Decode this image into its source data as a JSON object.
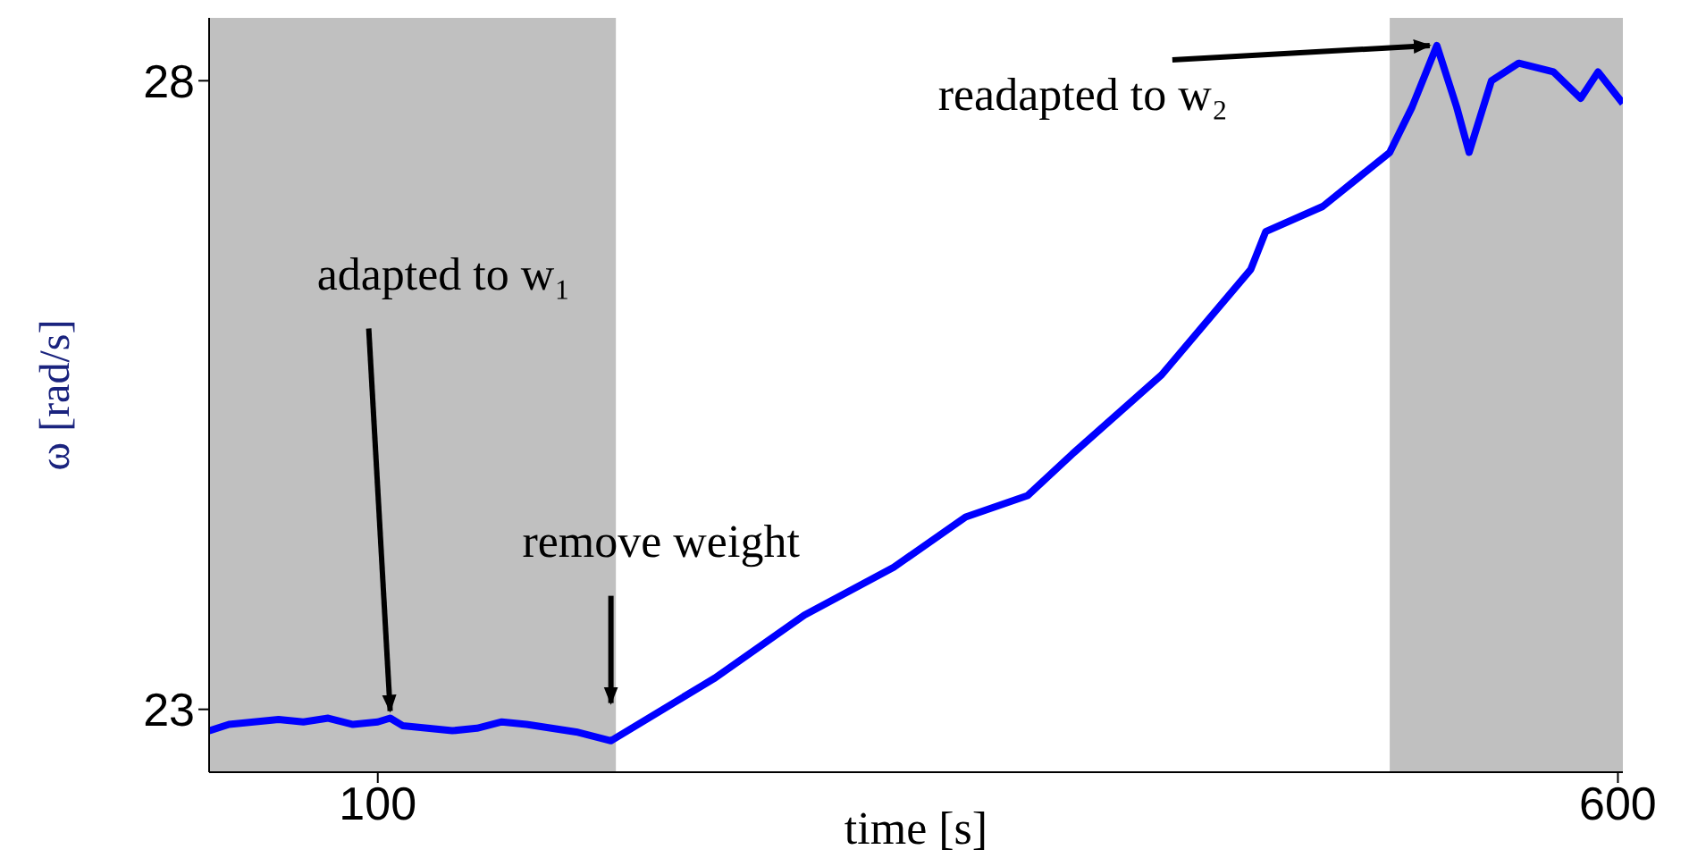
{
  "chart_data": {
    "type": "line",
    "xlabel": "time [s]",
    "ylabel": "ω [rad/s]",
    "xlim": [
      32,
      602
    ],
    "ylim": [
      22.5,
      28.5
    ],
    "xticks": [
      100,
      600
    ],
    "yticks": [
      23,
      28
    ],
    "series": [
      {
        "color": "#0000ff",
        "x": [
          32,
          40,
          50,
          60,
          70,
          80,
          90,
          100,
          105,
          110,
          120,
          130,
          140,
          150,
          160,
          170,
          180,
          194,
          236,
          272,
          308,
          337,
          362,
          380,
          416,
          452,
          458,
          481,
          508,
          517,
          527,
          535,
          540,
          549,
          560,
          574,
          585,
          592,
          602
        ],
        "values": [
          22.83,
          22.88,
          22.9,
          22.92,
          22.9,
          22.93,
          22.88,
          22.9,
          22.93,
          22.87,
          22.85,
          22.83,
          22.85,
          22.9,
          22.88,
          22.85,
          22.82,
          22.75,
          23.25,
          23.75,
          24.13,
          24.53,
          24.7,
          25.03,
          25.66,
          26.5,
          26.8,
          27.0,
          27.43,
          27.79,
          28.28,
          27.79,
          27.43,
          28.0,
          28.14,
          28.07,
          27.86,
          28.07,
          27.82
        ]
      }
    ],
    "bands": [
      {
        "axis": "x",
        "from": 32,
        "to": 196,
        "color": "#c0c0c0"
      },
      {
        "axis": "x",
        "from": 508,
        "to": 602,
        "color": "#c0c0c0"
      }
    ],
    "annotations": [
      {
        "text": "adapted to w₁",
        "x": 105,
        "y": 22.93
      },
      {
        "text": "remove weight",
        "x": 194,
        "y": 23.05
      },
      {
        "text": "readapted to w₂",
        "x": 527,
        "y": 28.28
      }
    ]
  }
}
